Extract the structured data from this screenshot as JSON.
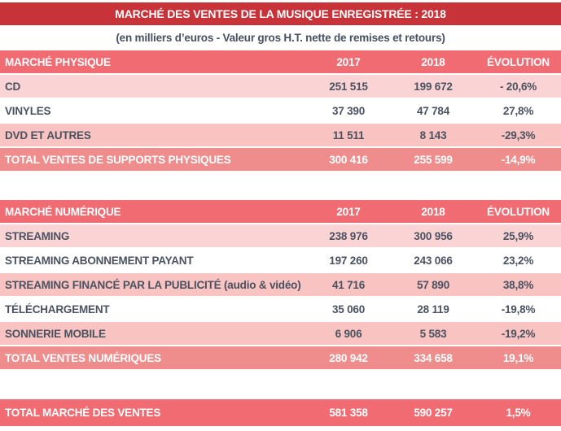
{
  "header": {
    "title": "MARCHÉ DES VENTES DE LA MUSIQUE ENREGISTRÉE : 2018",
    "subtitle": "(en milliers d’euros - Valeur gros H.T. nette de remises et retours)"
  },
  "colors": {
    "banner_red": "#c8333a",
    "section_header_salmon": "#f16c72",
    "subtotal_salmon": "#ef8d8d",
    "row_pink_light": "#fad4d4",
    "row_pink": "#f8c3c0",
    "row_white": "#ffffff",
    "text_dark": "#4a5261",
    "text_white": "#ffffff"
  },
  "physical": {
    "header": {
      "label": "MARCHÉ PHYSIQUE",
      "col2017": "2017",
      "col2018": "2018",
      "evolution": "ÉVOLUTION"
    },
    "rows": [
      {
        "label": "CD",
        "v2017": "251 515",
        "v2018": "199 672",
        "evo": "- 20,6%"
      },
      {
        "label": "VINYLES",
        "v2017": "37 390",
        "v2018": "47 784",
        "evo": "27,8%"
      },
      {
        "label": "DVD ET AUTRES",
        "v2017": "11 511",
        "v2018": "8 143",
        "evo": "-29,3%"
      }
    ],
    "total": {
      "label": "TOTAL VENTES DE SUPPORTS PHYSIQUES",
      "v2017": "300 416",
      "v2018": "255 599",
      "evo": "-14,9%"
    }
  },
  "digital": {
    "header": {
      "label": "MARCHÉ NUMÉRIQUE",
      "col2017": "2017",
      "col2018": "2018",
      "evolution": "ÉVOLUTION"
    },
    "rows": [
      {
        "label": "STREAMING",
        "v2017": "238 976",
        "v2018": "300 956",
        "evo": "25,9%"
      },
      {
        "label": "STREAMING ABONNEMENT PAYANT",
        "v2017": "197 260",
        "v2018": "243 066",
        "evo": "23,2%"
      },
      {
        "label": "STREAMING FINANCÉ PAR LA PUBLICITÉ (audio & vidéo)",
        "v2017": "41 716",
        "v2018": "57 890",
        "evo": "38,8%"
      },
      {
        "label": "TÉLÉCHARGEMENT",
        "v2017": "35 060",
        "v2018": "28 119",
        "evo": "-19,8%"
      },
      {
        "label": "SONNERIE MOBILE",
        "v2017": "6 906",
        "v2018": "5 583",
        "evo": "-19,2%"
      }
    ],
    "total": {
      "label": "TOTAL VENTES NUMÉRIQUES",
      "v2017": "280 942",
      "v2018": "334 658",
      "evo": "19,1%"
    }
  },
  "grand_total": {
    "label": "TOTAL MARCHÉ DES VENTES",
    "v2017": "581 358",
    "v2018": "590 257",
    "evo": "1,5%"
  },
  "chart_data": [
    {
      "type": "table",
      "title": "MARCHÉ DES VENTES DE LA MUSIQUE ENREGISTRÉE : 2018",
      "subtitle": "(en milliers d’euros - Valeur gros H.T. nette de remises et retours)",
      "section": "MARCHÉ PHYSIQUE",
      "columns": [
        "2017",
        "2018",
        "ÉVOLUTION"
      ],
      "rows": [
        {
          "label": "CD",
          "y2017": 251515,
          "y2018": 199672,
          "evolution_pct": -20.6
        },
        {
          "label": "VINYLES",
          "y2017": 37390,
          "y2018": 47784,
          "evolution_pct": 27.8
        },
        {
          "label": "DVD ET AUTRES",
          "y2017": 11511,
          "y2018": 8143,
          "evolution_pct": -29.3
        },
        {
          "label": "TOTAL VENTES DE SUPPORTS PHYSIQUES",
          "y2017": 300416,
          "y2018": 255599,
          "evolution_pct": -14.9
        }
      ]
    },
    {
      "type": "table",
      "section": "MARCHÉ NUMÉRIQUE",
      "columns": [
        "2017",
        "2018",
        "ÉVOLUTION"
      ],
      "rows": [
        {
          "label": "STREAMING",
          "y2017": 238976,
          "y2018": 300956,
          "evolution_pct": 25.9
        },
        {
          "label": "STREAMING ABONNEMENT PAYANT",
          "y2017": 197260,
          "y2018": 243066,
          "evolution_pct": 23.2
        },
        {
          "label": "STREAMING FINANCÉ PAR LA PUBLICITÉ (audio & vidéo)",
          "y2017": 41716,
          "y2018": 57890,
          "evolution_pct": 38.8
        },
        {
          "label": "TÉLÉCHARGEMENT",
          "y2017": 35060,
          "y2018": 28119,
          "evolution_pct": -19.8
        },
        {
          "label": "SONNERIE MOBILE",
          "y2017": 6906,
          "y2018": 5583,
          "evolution_pct": -19.2
        },
        {
          "label": "TOTAL VENTES NUMÉRIQUES",
          "y2017": 280942,
          "y2018": 334658,
          "evolution_pct": 19.1
        }
      ]
    },
    {
      "type": "table",
      "section": "TOTAL",
      "columns": [
        "2017",
        "2018",
        "ÉVOLUTION"
      ],
      "rows": [
        {
          "label": "TOTAL MARCHÉ DES VENTES",
          "y2017": 581358,
          "y2018": 590257,
          "evolution_pct": 1.5
        }
      ]
    }
  ]
}
